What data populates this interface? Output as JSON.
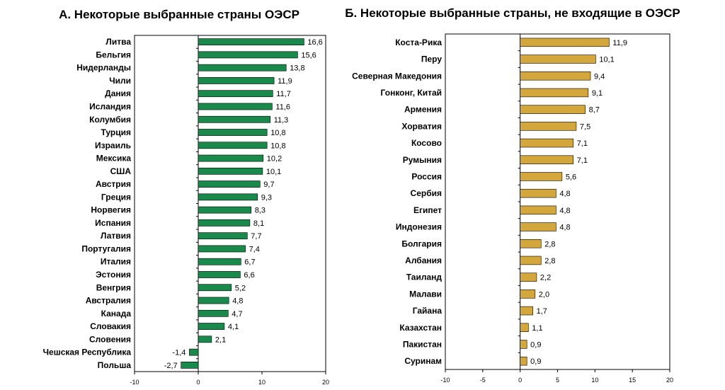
{
  "chart_data": [
    {
      "type": "bar",
      "orientation": "horizontal",
      "title": "А. Некоторые выбранные страны ОЭСР",
      "color": "#1a8a4c",
      "xlim": [
        -10,
        20
      ],
      "xticks": [
        "-10",
        "0",
        "10",
        "20"
      ],
      "categories": [
        "Литва",
        "Бельгия",
        "Нидерланды",
        "Чили",
        "Дания",
        "Исландия",
        "Колумбия",
        "Турция",
        "Израиль",
        "Мексика",
        "США",
        "Австрия",
        "Греция",
        "Норвегия",
        "Испания",
        "Латвия",
        "Португалия",
        "Италия",
        "Эстония",
        "Венгрия",
        "Австралия",
        "Канада",
        "Словакия",
        "Словения",
        "Чешская Республика",
        "Польша"
      ],
      "values": [
        16.6,
        15.6,
        13.8,
        11.9,
        11.7,
        11.6,
        11.3,
        10.8,
        10.8,
        10.2,
        10.1,
        9.7,
        9.3,
        8.3,
        8.1,
        7.7,
        7.4,
        6.7,
        6.6,
        5.2,
        4.8,
        4.7,
        4.1,
        2.1,
        -1.4,
        -2.7
      ],
      "labels": [
        "16,6",
        "15,6",
        "13,8",
        "11,9",
        "11,7",
        "11,6",
        "11,3",
        "10,8",
        "10,8",
        "10,2",
        "10,1",
        "9,7",
        "9,3",
        "8,3",
        "8,1",
        "7,7",
        "7,4",
        "6,7",
        "6,6",
        "5,2",
        "4,8",
        "4,7",
        "4,1",
        "2,1",
        "-1,4",
        "-2,7"
      ]
    },
    {
      "type": "bar",
      "orientation": "horizontal",
      "title": "Б. Некоторые выбранные страны, не входящие в ОЭСР",
      "color": "#d4a73c",
      "xlim": [
        -10,
        20
      ],
      "xticks": [
        "-10",
        "-5",
        "0",
        "5",
        "10",
        "15",
        "20"
      ],
      "categories": [
        "Коста-Рика",
        "Перу",
        "Северная Македония",
        "Гонконг, Китай",
        "Армения",
        "Хорватия",
        "Косово",
        "Румыния",
        "Россия",
        "Сербия",
        "Египет",
        "Индонезия",
        "Болгария",
        "Албания",
        "Таиланд",
        "Малави",
        "Гайана",
        "Казахстан",
        "Пакистан",
        "Суринам"
      ],
      "values": [
        11.9,
        10.1,
        9.4,
        9.1,
        8.7,
        7.5,
        7.1,
        7.1,
        5.6,
        4.8,
        4.8,
        4.8,
        2.8,
        2.8,
        2.2,
        2.0,
        1.7,
        1.1,
        0.9,
        0.9
      ],
      "labels": [
        "11,9",
        "10,1",
        "9,4",
        "9,1",
        "8,7",
        "7,5",
        "7,1",
        "7,1",
        "5,6",
        "4,8",
        "4,8",
        "4,8",
        "2,8",
        "2,8",
        "2,2",
        "2,0",
        "1,7",
        "1,1",
        "0,9",
        "0,9"
      ]
    }
  ]
}
